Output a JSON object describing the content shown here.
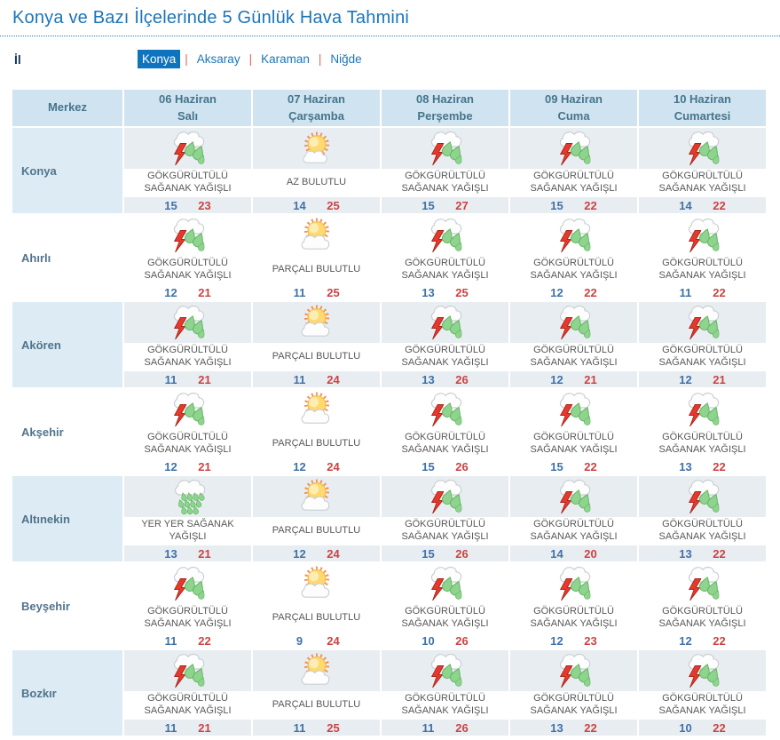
{
  "page": {
    "title": "Konya ve Bazı İlçelerinde 5 Günlük Hava Tahmini"
  },
  "province_selector": {
    "label": "İl",
    "separator": "|",
    "tabs": [
      {
        "label": "Konya",
        "active": true
      },
      {
        "label": "Aksaray",
        "active": false
      },
      {
        "label": "Karaman",
        "active": false
      },
      {
        "label": "Niğde",
        "active": false
      }
    ]
  },
  "colors": {
    "accent_blue": "#1b75bb",
    "active_tab_bg": "#0e74bd",
    "tab_separator": "#e8654f",
    "header_bg": "#cfe4f0",
    "header_text": "#47748b",
    "stripe_merkez_bg": "#dcebf4",
    "stripe_cell_bg": "#e8edf1",
    "temp_min_blue": "#3f72a9",
    "temp_max_red": "#cb4343",
    "lightning_red": "#e6392b",
    "raindrop_green": "#8ed48e",
    "sun_orange": "#f29054"
  },
  "table": {
    "merkez_header": "Merkez",
    "day_headers": [
      {
        "date": "06 Haziran",
        "weekday": "Salı"
      },
      {
        "date": "07 Haziran",
        "weekday": "Çarşamba"
      },
      {
        "date": "08 Haziran",
        "weekday": "Perşembe"
      },
      {
        "date": "09 Haziran",
        "weekday": "Cuma"
      },
      {
        "date": "10 Haziran",
        "weekday": "Cumartesi"
      }
    ],
    "rows": [
      {
        "name": "Konya",
        "days": [
          {
            "icon": "thunderstorm",
            "condition": "GÖKGÜRÜLTÜLÜ SAĞANAK YAĞIŞLI",
            "min": 15,
            "max": 23
          },
          {
            "icon": "sun-small-cloud",
            "condition": "AZ BULUTLU",
            "min": 14,
            "max": 25
          },
          {
            "icon": "thunderstorm",
            "condition": "GÖKGÜRÜLTÜLÜ SAĞANAK YAĞIŞLI",
            "min": 15,
            "max": 27
          },
          {
            "icon": "thunderstorm",
            "condition": "GÖKGÜRÜLTÜLÜ SAĞANAK YAĞIŞLI",
            "min": 15,
            "max": 22
          },
          {
            "icon": "thunderstorm",
            "condition": "GÖKGÜRÜLTÜLÜ SAĞANAK YAĞIŞLI",
            "min": 14,
            "max": 22
          }
        ]
      },
      {
        "name": "Ahırlı",
        "days": [
          {
            "icon": "thunderstorm",
            "condition": "GÖKGÜRÜLTÜLÜ SAĞANAK YAĞIŞLI",
            "min": 12,
            "max": 21
          },
          {
            "icon": "sun-cloud",
            "condition": "PARÇALI BULUTLU",
            "min": 11,
            "max": 25
          },
          {
            "icon": "thunderstorm",
            "condition": "GÖKGÜRÜLTÜLÜ SAĞANAK YAĞIŞLI",
            "min": 13,
            "max": 25
          },
          {
            "icon": "thunderstorm",
            "condition": "GÖKGÜRÜLTÜLÜ SAĞANAK YAĞIŞLI",
            "min": 12,
            "max": 22
          },
          {
            "icon": "thunderstorm",
            "condition": "GÖKGÜRÜLTÜLÜ SAĞANAK YAĞIŞLI",
            "min": 11,
            "max": 22
          }
        ]
      },
      {
        "name": "Akören",
        "days": [
          {
            "icon": "thunderstorm",
            "condition": "GÖKGÜRÜLTÜLÜ SAĞANAK YAĞIŞLI",
            "min": 11,
            "max": 21
          },
          {
            "icon": "sun-cloud",
            "condition": "PARÇALI BULUTLU",
            "min": 11,
            "max": 24
          },
          {
            "icon": "thunderstorm",
            "condition": "GÖKGÜRÜLTÜLÜ SAĞANAK YAĞIŞLI",
            "min": 13,
            "max": 26
          },
          {
            "icon": "thunderstorm",
            "condition": "GÖKGÜRÜLTÜLÜ SAĞANAK YAĞIŞLI",
            "min": 12,
            "max": 21
          },
          {
            "icon": "thunderstorm",
            "condition": "GÖKGÜRÜLTÜLÜ SAĞANAK YAĞIŞLI",
            "min": 12,
            "max": 21
          }
        ]
      },
      {
        "name": "Akşehir",
        "days": [
          {
            "icon": "thunderstorm",
            "condition": "GÖKGÜRÜLTÜLÜ SAĞANAK YAĞIŞLI",
            "min": 12,
            "max": 21
          },
          {
            "icon": "sun-cloud",
            "condition": "PARÇALI BULUTLU",
            "min": 12,
            "max": 24
          },
          {
            "icon": "thunderstorm",
            "condition": "GÖKGÜRÜLTÜLÜ SAĞANAK YAĞIŞLI",
            "min": 15,
            "max": 26
          },
          {
            "icon": "thunderstorm",
            "condition": "GÖKGÜRÜLTÜLÜ SAĞANAK YAĞIŞLI",
            "min": 15,
            "max": 22
          },
          {
            "icon": "thunderstorm",
            "condition": "GÖKGÜRÜLTÜLÜ SAĞANAK YAĞIŞLI",
            "min": 13,
            "max": 22
          }
        ]
      },
      {
        "name": "Altınekin",
        "days": [
          {
            "icon": "showers",
            "condition": "YER YER SAĞANAK YAĞIŞLI",
            "min": 13,
            "max": 21
          },
          {
            "icon": "sun-cloud",
            "condition": "PARÇALI BULUTLU",
            "min": 12,
            "max": 24
          },
          {
            "icon": "thunderstorm",
            "condition": "GÖKGÜRÜLTÜLÜ SAĞANAK YAĞIŞLI",
            "min": 15,
            "max": 26
          },
          {
            "icon": "thunderstorm",
            "condition": "GÖKGÜRÜLTÜLÜ SAĞANAK YAĞIŞLI",
            "min": 14,
            "max": 20
          },
          {
            "icon": "thunderstorm",
            "condition": "GÖKGÜRÜLTÜLÜ SAĞANAK YAĞIŞLI",
            "min": 13,
            "max": 22
          }
        ]
      },
      {
        "name": "Beyşehir",
        "days": [
          {
            "icon": "thunderstorm",
            "condition": "GÖKGÜRÜLTÜLÜ SAĞANAK YAĞIŞLI",
            "min": 11,
            "max": 22
          },
          {
            "icon": "sun-cloud",
            "condition": "PARÇALI BULUTLU",
            "min": 9,
            "max": 24
          },
          {
            "icon": "thunderstorm",
            "condition": "GÖKGÜRÜLTÜLÜ SAĞANAK YAĞIŞLI",
            "min": 10,
            "max": 26
          },
          {
            "icon": "thunderstorm",
            "condition": "GÖKGÜRÜLTÜLÜ SAĞANAK YAĞIŞLI",
            "min": 12,
            "max": 23
          },
          {
            "icon": "thunderstorm",
            "condition": "GÖKGÜRÜLTÜLÜ SAĞANAK YAĞIŞLI",
            "min": 12,
            "max": 22
          }
        ]
      },
      {
        "name": "Bozkır",
        "days": [
          {
            "icon": "thunderstorm",
            "condition": "GÖKGÜRÜLTÜLÜ SAĞANAK YAĞIŞLI",
            "min": 11,
            "max": 21
          },
          {
            "icon": "sun-cloud",
            "condition": "PARÇALI BULUTLU",
            "min": 11,
            "max": 25
          },
          {
            "icon": "thunderstorm",
            "condition": "GÖKGÜRÜLTÜLÜ SAĞANAK YAĞIŞLI",
            "min": 11,
            "max": 26
          },
          {
            "icon": "thunderstorm",
            "condition": "GÖKGÜRÜLTÜLÜ SAĞANAK YAĞIŞLI",
            "min": 13,
            "max": 22
          },
          {
            "icon": "thunderstorm",
            "condition": "GÖKGÜRÜLTÜLÜ SAĞANAK YAĞIŞLI",
            "min": 10,
            "max": 22
          }
        ]
      }
    ]
  }
}
